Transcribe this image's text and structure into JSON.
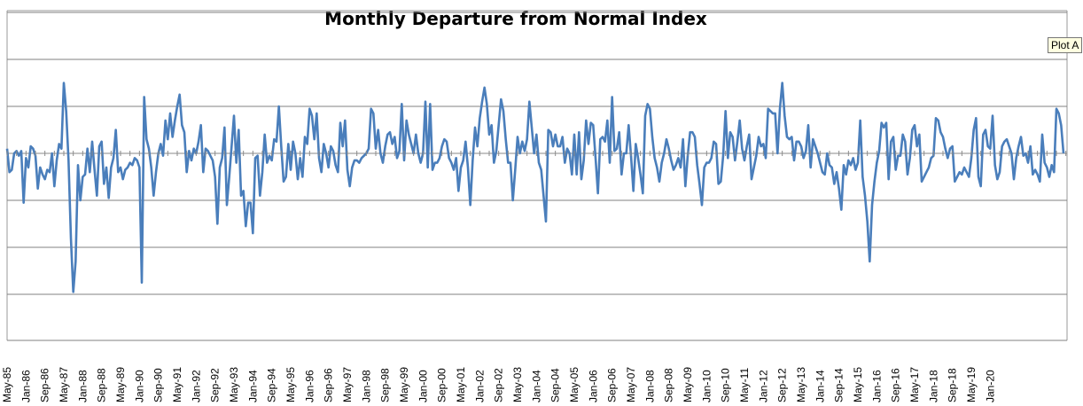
{
  "chart_data": {
    "type": "line",
    "title": "Monthly Departure from Normal Index",
    "xlabel": "",
    "ylabel": "",
    "ylim": [
      -4,
      3
    ],
    "y_gridline_step": 1,
    "grid": true,
    "legend": "none",
    "x_start": "May-85",
    "x_end": "Feb-20",
    "x_tick_labels": [
      "May-85",
      "Jan-86",
      "Sep-86",
      "May-87",
      "Jan-88",
      "Sep-88",
      "May-89",
      "Jan-90",
      "Sep-90",
      "May-91",
      "Jan-92",
      "Sep-92",
      "May-93",
      "Jan-94",
      "Sep-94",
      "May-95",
      "Jan-96",
      "Sep-96",
      "May-97",
      "Jan-98",
      "Sep-98",
      "May-99",
      "Jan-00",
      "Sep-00",
      "May-01",
      "Jan-02",
      "Sep-02",
      "May-03",
      "Jan-04",
      "Sep-04",
      "May-05",
      "Jan-06",
      "Sep-06",
      "May-07",
      "Jan-08",
      "Sep-08",
      "May-09",
      "Jan-10",
      "Sep-10",
      "May-11",
      "Jan-12",
      "Sep-12",
      "May-13",
      "Jan-14",
      "Sep-14",
      "May-15",
      "Jan-16",
      "Sep-16",
      "May-17",
      "Jan-18",
      "Sep-18",
      "May-19",
      "Jan-20"
    ],
    "series": [
      {
        "color": "#4a7ebb",
        "values": [
          0.1,
          -0.4,
          -0.35,
          0.0,
          0.05,
          -0.05,
          0.05,
          -1.05,
          -0.1,
          -0.3,
          0.15,
          0.1,
          -0.05,
          -0.75,
          -0.3,
          -0.45,
          -0.55,
          -0.35,
          -0.4,
          0.0,
          -0.7,
          -0.15,
          0.2,
          0.1,
          1.5,
          0.9,
          -0.15,
          -1.8,
          -2.95,
          -2.3,
          -0.25,
          -1.0,
          -0.5,
          -0.45,
          0.1,
          -0.4,
          0.25,
          -0.35,
          -0.9,
          0.15,
          0.25,
          -0.65,
          -0.3,
          -0.95,
          -0.3,
          -0.1,
          0.5,
          -0.4,
          -0.3,
          -0.55,
          -0.35,
          -0.3,
          -0.2,
          -0.25,
          -0.1,
          -0.15,
          -0.3,
          -2.75,
          1.2,
          0.3,
          0.1,
          -0.3,
          -0.9,
          -0.4,
          0.0,
          0.2,
          -0.05,
          0.7,
          0.3,
          0.85,
          0.35,
          0.7,
          1.0,
          1.25,
          0.6,
          0.45,
          -0.4,
          0.05,
          -0.15,
          0.1,
          0.0,
          0.25,
          0.6,
          -0.4,
          0.1,
          0.05,
          -0.05,
          -0.15,
          -0.5,
          -1.5,
          -0.3,
          -0.1,
          0.55,
          -1.1,
          -0.5,
          0.15,
          0.8,
          -0.2,
          0.5,
          -0.9,
          -0.8,
          -1.55,
          -1.05,
          -1.05,
          -1.7,
          -0.1,
          -0.05,
          -0.9,
          -0.4,
          0.4,
          -0.2,
          -0.05,
          -0.15,
          0.3,
          0.25,
          1.0,
          0.15,
          -0.6,
          -0.5,
          0.2,
          -0.35,
          0.25,
          0.0,
          -0.55,
          -0.1,
          -0.5,
          0.35,
          0.2,
          0.95,
          0.8,
          0.3,
          0.85,
          -0.1,
          -0.4,
          0.2,
          0.0,
          -0.3,
          0.15,
          0.05,
          -0.25,
          -0.4,
          0.65,
          0.15,
          0.7,
          -0.35,
          -0.7,
          -0.3,
          -0.15,
          -0.15,
          -0.2,
          -0.1,
          -0.05,
          0.0,
          0.1,
          0.95,
          0.85,
          0.1,
          0.5,
          0.0,
          -0.2,
          0.15,
          0.4,
          0.45,
          0.2,
          0.35,
          -0.1,
          0.05,
          1.05,
          -0.15,
          0.7,
          0.4,
          0.2,
          0.0,
          0.4,
          0.0,
          -0.2,
          0.0,
          1.1,
          -0.3,
          1.05,
          -0.35,
          -0.2,
          -0.2,
          -0.1,
          0.15,
          0.3,
          0.25,
          -0.1,
          -0.2,
          -0.35,
          -0.1,
          -0.8,
          -0.3,
          -0.15,
          0.25,
          -0.3,
          -1.1,
          -0.15,
          0.55,
          0.15,
          0.75,
          1.1,
          1.4,
          1.05,
          0.4,
          0.6,
          -0.2,
          0.05,
          0.6,
          1.15,
          0.9,
          0.3,
          -0.2,
          -0.2,
          -1.0,
          -0.35,
          0.35,
          0.0,
          0.25,
          0.05,
          0.3,
          1.1,
          0.55,
          0.0,
          0.4,
          -0.2,
          -0.35,
          -0.9,
          -1.45,
          0.5,
          0.45,
          0.15,
          0.4,
          0.15,
          0.15,
          0.35,
          -0.2,
          0.1,
          0.0,
          -0.45,
          0.4,
          -0.45,
          0.45,
          -0.55,
          -0.15,
          0.7,
          0.2,
          0.65,
          0.6,
          -0.1,
          -0.85,
          0.3,
          0.35,
          0.25,
          0.7,
          -0.2,
          1.2,
          0.05,
          0.1,
          0.45,
          -0.45,
          0.0,
          0.0,
          0.6,
          -0.05,
          -0.8,
          0.2,
          -0.1,
          -0.45,
          -0.85,
          0.8,
          1.05,
          0.95,
          0.35,
          -0.1,
          -0.3,
          -0.6,
          -0.2,
          0.0,
          0.3,
          0.1,
          -0.15,
          -0.35,
          -0.25,
          -0.1,
          -0.3,
          0.3,
          -0.7,
          -0.05,
          0.45,
          0.45,
          0.35,
          -0.25,
          -0.65,
          -1.1,
          -0.3,
          -0.2,
          -0.2,
          -0.1,
          0.25,
          0.2,
          -0.65,
          -0.6,
          -0.05,
          0.9,
          -0.1,
          0.45,
          0.35,
          -0.15,
          0.25,
          0.7,
          0.1,
          -0.15,
          0.15,
          0.4,
          -0.55,
          -0.3,
          -0.05,
          0.35,
          0.15,
          0.2,
          -0.1,
          0.95,
          0.9,
          0.85,
          0.85,
          0.0,
          0.95,
          1.5,
          0.8,
          0.35,
          0.3,
          0.35,
          -0.15,
          0.25,
          0.25,
          0.15,
          -0.1,
          0.05,
          0.6,
          -0.3,
          0.3,
          0.15,
          0.0,
          -0.2,
          -0.4,
          -0.45,
          0.0,
          -0.25,
          -0.3,
          -0.65,
          -0.4,
          -0.75,
          -1.2,
          -0.25,
          -0.45,
          -0.15,
          -0.25,
          -0.1,
          -0.35,
          -0.2,
          0.7,
          -0.5,
          -0.9,
          -1.45,
          -2.3,
          -1.1,
          -0.6,
          -0.2,
          0.05,
          0.65,
          0.55,
          0.65,
          -0.55,
          0.25,
          0.35,
          -0.35,
          -0.05,
          -0.05,
          0.4,
          0.25,
          -0.45,
          -0.1,
          0.5,
          0.6,
          0.15,
          0.4,
          -0.6,
          -0.5,
          -0.4,
          -0.3,
          -0.1,
          -0.05,
          0.75,
          0.7,
          0.45,
          0.35,
          0.1,
          -0.1,
          0.1,
          0.15,
          -0.6,
          -0.5,
          -0.4,
          -0.45,
          -0.3,
          -0.4,
          -0.5,
          -0.1,
          0.5,
          0.75,
          -0.5,
          -0.7,
          0.4,
          0.5,
          0.15,
          0.1,
          0.8,
          -0.25,
          -0.55,
          -0.4,
          0.15,
          0.25,
          0.3,
          0.15,
          0.0,
          -0.55,
          -0.1,
          0.15,
          0.35,
          -0.05,
          0.0,
          -0.2,
          0.15,
          -0.45,
          -0.35,
          -0.45,
          -0.6,
          0.4,
          -0.2,
          -0.3,
          -0.5,
          -0.25,
          -0.4,
          0.95,
          0.85,
          0.6,
          0.0
        ]
      }
    ]
  },
  "tooltip": {
    "text": "Plot A"
  }
}
